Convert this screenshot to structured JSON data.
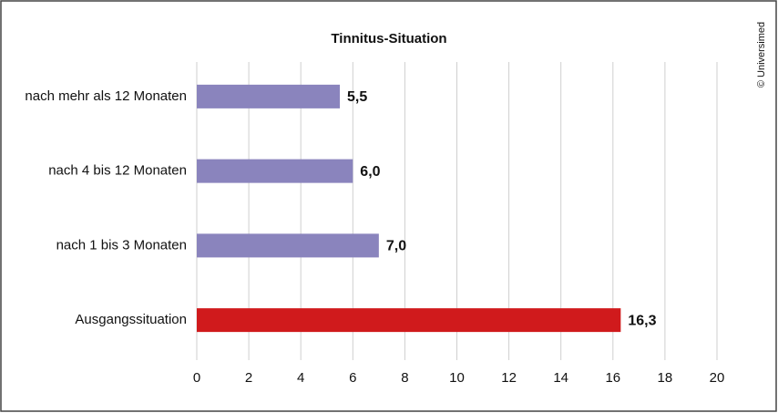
{
  "chart_data": {
    "type": "bar",
    "orientation": "horizontal",
    "title": "Tinnitus-Situation",
    "credit": "© Universimed",
    "categories": [
      "nach mehr als 12 Monaten",
      "nach 4 bis 12 Monaten",
      "nach 1 bis 3 Monaten",
      "Ausgangssituation"
    ],
    "values": [
      5.5,
      6.0,
      7.0,
      16.3
    ],
    "value_labels": [
      "5,5",
      "6,0",
      "7,0",
      "16,3"
    ],
    "colors": [
      "#8a84bd",
      "#8a84bd",
      "#8a84bd",
      "#d01a1c"
    ],
    "xlim": [
      0,
      20
    ],
    "xticks": [
      0,
      2,
      4,
      6,
      8,
      10,
      12,
      14,
      16,
      18,
      20
    ],
    "grid": true
  }
}
